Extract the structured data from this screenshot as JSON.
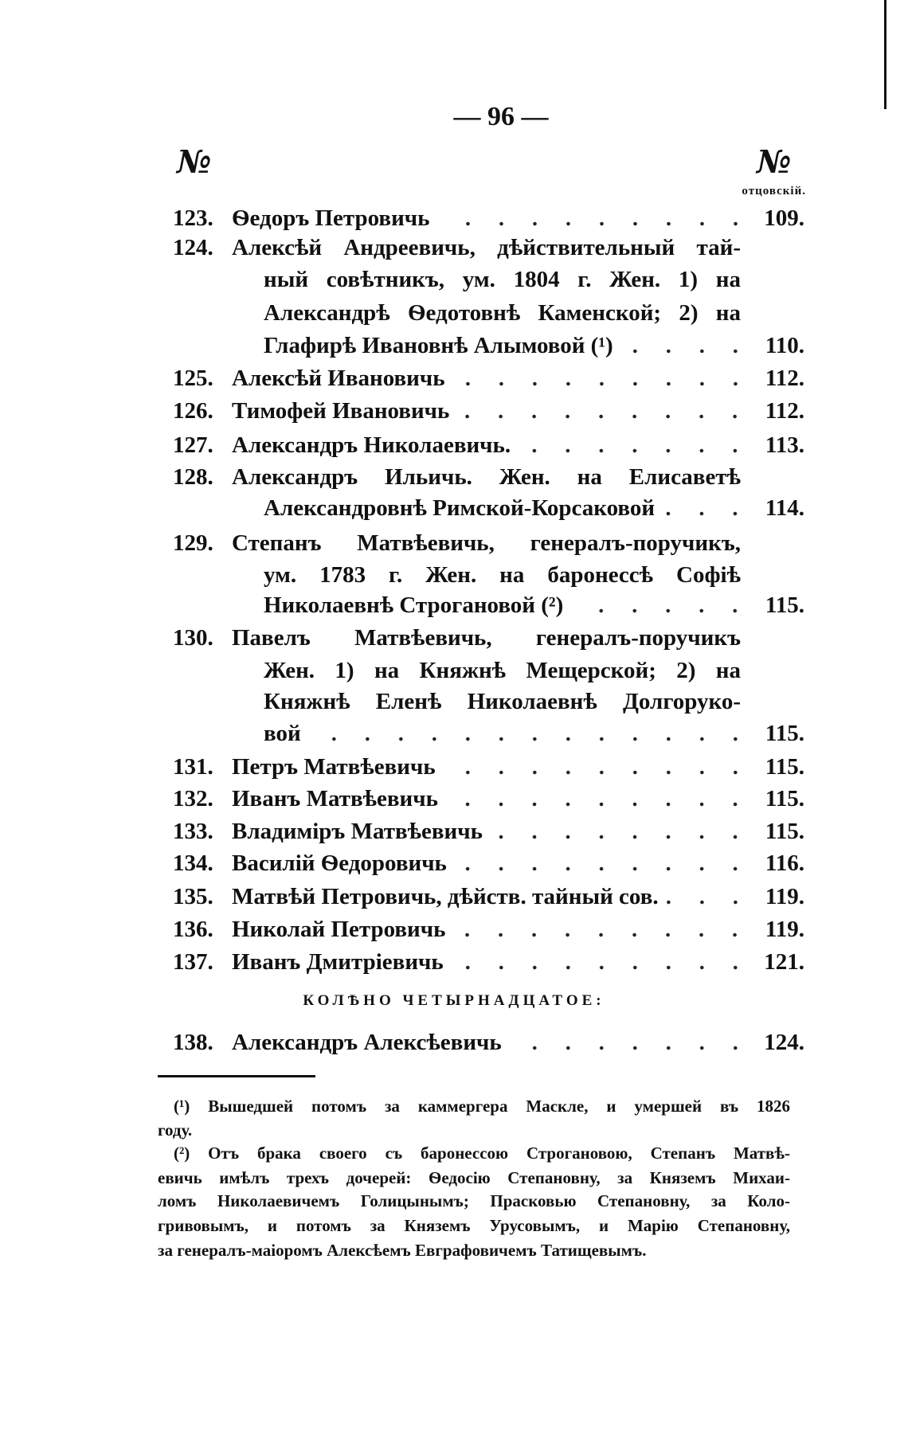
{
  "page_number": "— 96 —",
  "column_header_left": "№",
  "column_header_right": "№",
  "column_header_right_sub": "отцовскій.",
  "entries": [
    {
      "num": "123.",
      "lines": [
        "Ѳедоръ Петровичь"
      ],
      "page": "109."
    },
    {
      "num": "124.",
      "lines": [
        "Алексѣй Андреевичь, дѣйствительный тай-",
        "ный совѣтникъ, ум. 1804 г. Жен. 1) на",
        "Александрѣ Ѳедотовнѣ Каменской; 2) на",
        "Глафирѣ Ивановнѣ Алымовой (¹)"
      ],
      "page": "110."
    },
    {
      "num": "125.",
      "lines": [
        "Алексѣй Ивановичь"
      ],
      "page": "112."
    },
    {
      "num": "126.",
      "lines": [
        "Тимофей Ивановичь"
      ],
      "page": "112."
    },
    {
      "num": "127.",
      "lines": [
        "Александръ Николаевичь."
      ],
      "page": "113."
    },
    {
      "num": "128.",
      "lines": [
        "Александръ Ильичь. Жен. на Елисаветѣ",
        "Александровнѣ Римской-Корсаковой"
      ],
      "page": "114."
    },
    {
      "num": "129.",
      "lines": [
        "Степанъ Матвѣевичь, генералъ-поручикъ,",
        "ум. 1783 г. Жен. на баронессѣ Софіѣ",
        "Николаевнѣ Строгановой (²)"
      ],
      "page": "115."
    },
    {
      "num": "130.",
      "lines": [
        "Павелъ Матвѣевичь, генералъ-поручикъ",
        "Жен. 1) на Княжнѣ Мещерской; 2) на",
        "Княжнѣ Еленѣ Николаевнѣ Долгоруко-",
        "вой"
      ],
      "page": "115."
    },
    {
      "num": "131.",
      "lines": [
        "Петръ Матвѣевичь"
      ],
      "page": "115."
    },
    {
      "num": "132.",
      "lines": [
        "Иванъ Матвѣевичь"
      ],
      "page": "115."
    },
    {
      "num": "133.",
      "lines": [
        "Владиміръ Матвѣевичь"
      ],
      "page": "115."
    },
    {
      "num": "134.",
      "lines": [
        "Василій Ѳедоровичь"
      ],
      "page": "116."
    },
    {
      "num": "135.",
      "lines": [
        "Матвѣй Петровичь, дѣйств. тайный сов."
      ],
      "page": "119."
    },
    {
      "num": "136.",
      "lines": [
        "Николай Петровичь"
      ],
      "page": "119."
    },
    {
      "num": "137.",
      "lines": [
        "Иванъ Дмитріевичь"
      ],
      "page": "121."
    }
  ],
  "section_heading": "КОЛѢНО ЧЕТЫРНАДЦАТОЕ:",
  "entries_after": [
    {
      "num": "138.",
      "lines": [
        "Александръ Алексѣевичь"
      ],
      "page": "124."
    }
  ],
  "footnotes": [
    {
      "lines": [
        "(¹) Вышедшей потомъ за каммергера Маскле, и умершей въ 1826",
        "году."
      ]
    },
    {
      "lines": [
        "(²) Отъ брака своего съ баронессою Строгановою, Степанъ Матвѣ-",
        "евичь имѣлъ трехъ дочерей: Ѳедосію Степановну, за Княземъ Михаи-",
        "ломъ Николаевичемъ Голицынымъ; Прасковью Степановну, за Коло-",
        "гривовымъ, и потомъ за Княземъ Урусовымъ, и Марію Степановну,",
        "за генералъ-маіоромъ Алексѣемъ Евграфовичемъ Татищевымъ."
      ]
    }
  ]
}
